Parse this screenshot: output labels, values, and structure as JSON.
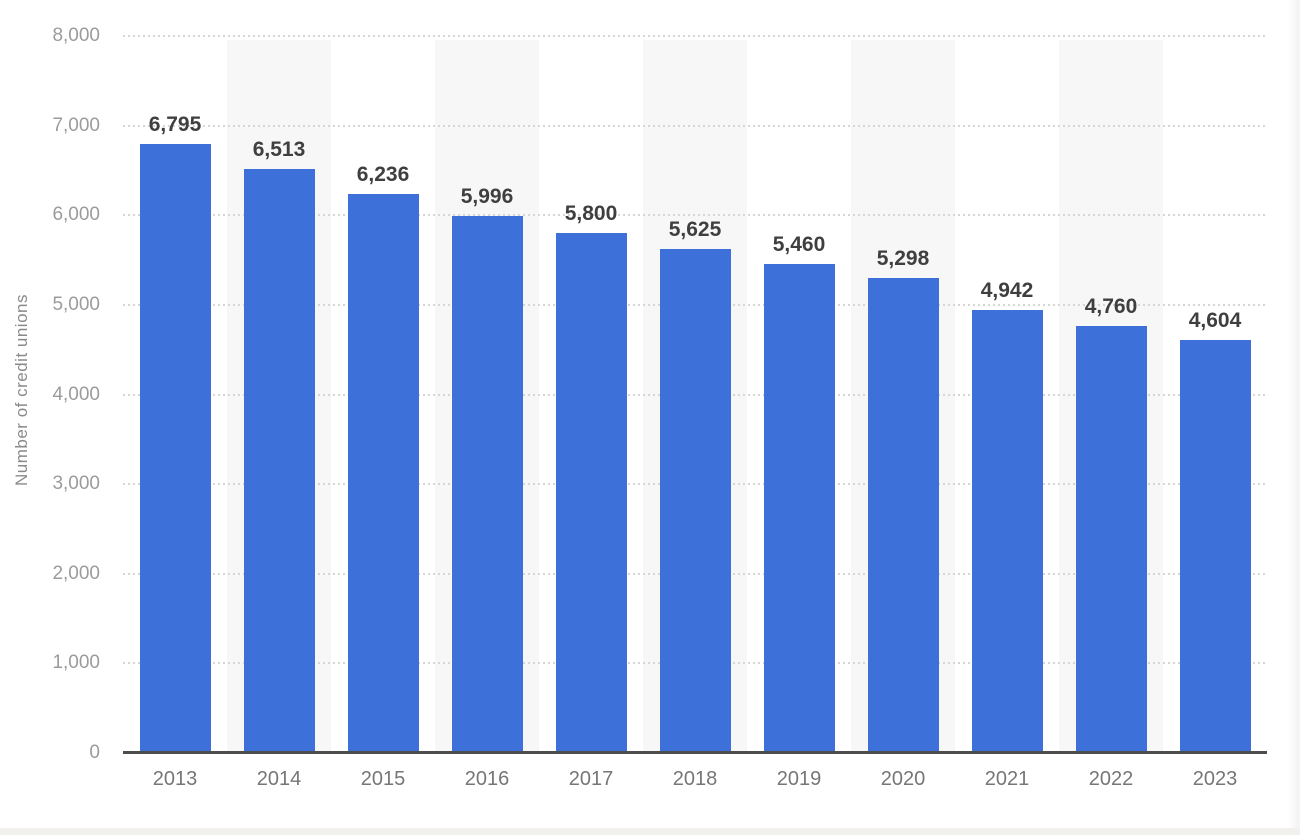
{
  "page": {
    "background": "#ffffff",
    "bottom_strip_color": "#f2f0ec"
  },
  "chart_data": {
    "type": "bar",
    "title": "",
    "xlabel": "",
    "ylabel": "Number of credit unions",
    "categories": [
      "2013",
      "2014",
      "2015",
      "2016",
      "2017",
      "2018",
      "2019",
      "2020",
      "2021",
      "2022",
      "2023"
    ],
    "values": [
      6795,
      6513,
      6236,
      5996,
      5800,
      5625,
      5460,
      5298,
      4942,
      4760,
      4604
    ],
    "value_labels": [
      "6,795",
      "6,513",
      "6,236",
      "5,996",
      "5,800",
      "5,625",
      "5,460",
      "5,298",
      "4,942",
      "4,760",
      "4,604"
    ],
    "yticks": [
      "0",
      "1,000",
      "2,000",
      "3,000",
      "4,000",
      "5,000",
      "6,000",
      "7,000",
      "8,000"
    ],
    "ytick_interval": 1000,
    "ylim": [
      0,
      8000
    ],
    "grid": "horizontal-dotted",
    "legend": "none",
    "colors": {
      "bar": "#3D70D8",
      "band": "#f7f7f7",
      "gridline": "#d6d6d6",
      "axis": "#4d4d4d",
      "value_label": "#3f3f3f",
      "tick_label": "#9b9b9b",
      "xtick_label": "#767676",
      "ytitle": "#8a8a8a"
    }
  }
}
